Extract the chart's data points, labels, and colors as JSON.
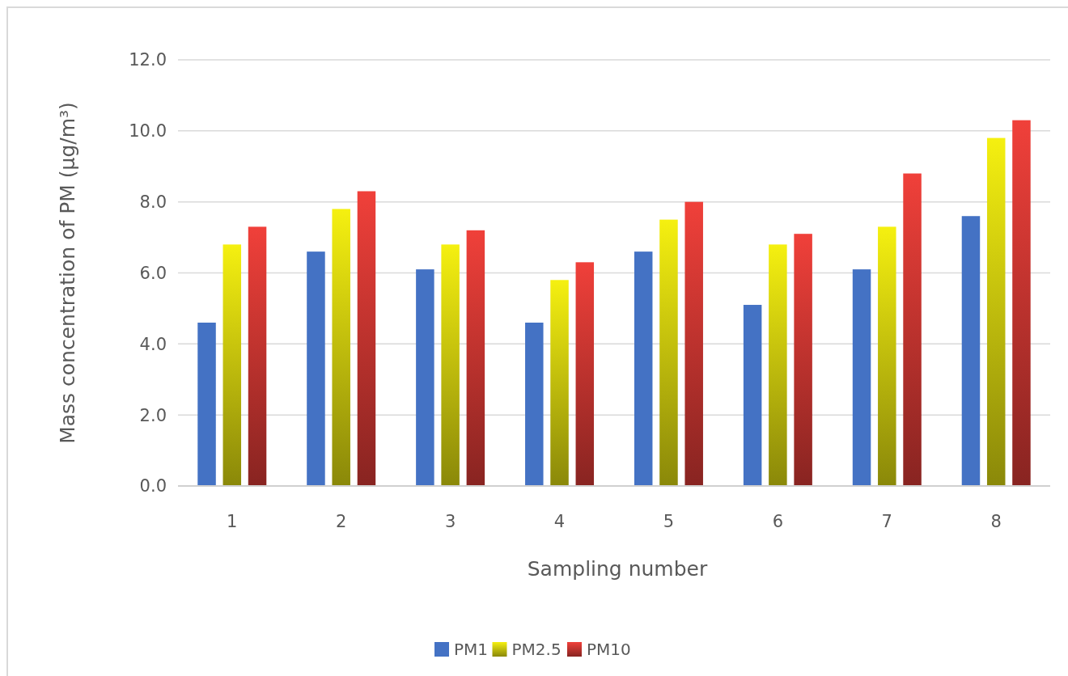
{
  "chart_data": {
    "type": "bar",
    "xlabel": "Sampling number",
    "ylabel": "Mass concentration of PM (μg/m³)",
    "categories": [
      "1",
      "2",
      "3",
      "4",
      "5",
      "6",
      "7",
      "8"
    ],
    "series": [
      {
        "name": "PM1",
        "color": "#4472c4",
        "values": [
          4.6,
          6.6,
          6.1,
          4.6,
          6.6,
          5.1,
          6.1,
          7.6
        ]
      },
      {
        "name": "PM2.5",
        "color": "#f5f010",
        "values": [
          6.8,
          7.8,
          6.8,
          5.8,
          7.5,
          6.8,
          7.3,
          9.8
        ]
      },
      {
        "name": "PM10",
        "color": "#f0403a",
        "values": [
          7.3,
          8.3,
          7.2,
          6.3,
          8.0,
          7.1,
          8.8,
          10.3
        ]
      }
    ],
    "ylim": [
      0,
      12
    ],
    "yticks": [
      {
        "value": 0,
        "label": "0.0"
      },
      {
        "value": 2,
        "label": "2.0"
      },
      {
        "value": 4,
        "label": "4.0"
      },
      {
        "value": 6,
        "label": "6.0"
      },
      {
        "value": 8,
        "label": "8.0"
      },
      {
        "value": 10,
        "label": "10.0"
      },
      {
        "value": 12,
        "label": "12.0"
      }
    ],
    "grid": "y",
    "legend": "bottom"
  }
}
